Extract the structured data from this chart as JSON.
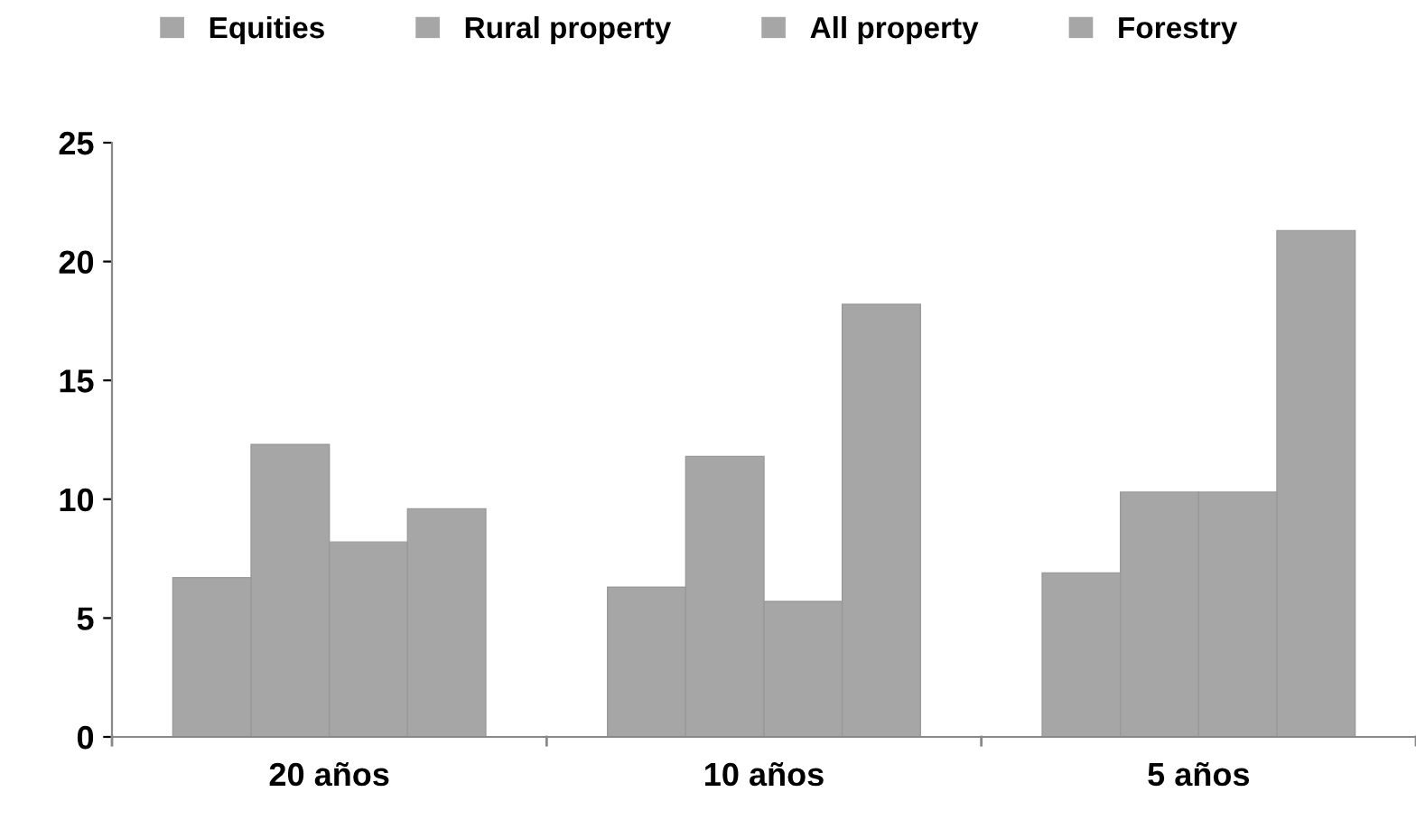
{
  "chart_data": {
    "type": "bar",
    "categories": [
      "20 años",
      "10 años",
      "5 años"
    ],
    "series": [
      {
        "name": "Equities",
        "color": "#a6a6a6",
        "values": [
          6.7,
          6.3,
          6.9
        ]
      },
      {
        "name": "Rural property",
        "color": "#a6a6a6",
        "values": [
          12.3,
          11.8,
          10.3
        ]
      },
      {
        "name": "All property",
        "color": "#a6a6a6",
        "values": [
          8.2,
          5.7,
          10.3
        ]
      },
      {
        "name": "Forestry",
        "color": "#a6a6a6",
        "values": [
          9.6,
          18.2,
          21.3
        ]
      }
    ],
    "ylim": [
      0,
      25
    ],
    "yticks": [
      0,
      5,
      10,
      15,
      20,
      25
    ],
    "grid": false,
    "legend": "top"
  }
}
